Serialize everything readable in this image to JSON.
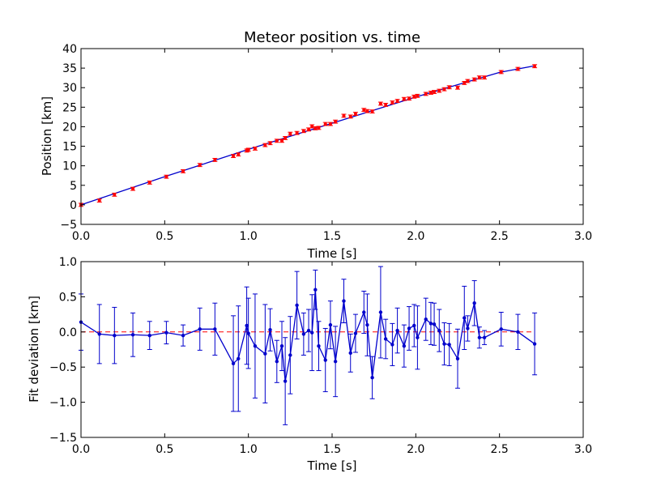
{
  "chart_data": [
    {
      "type": "scatter",
      "title": "Meteor position vs. time",
      "xlabel": "Time [s]",
      "ylabel": "Position [km]",
      "xlim": [
        0.0,
        3.0
      ],
      "ylim": [
        -5,
        40
      ],
      "x_ticks": [
        "0.0",
        "0.5",
        "1.0",
        "1.5",
        "2.0",
        "2.5",
        "3.0"
      ],
      "y_ticks": [
        "−5",
        "0",
        "5",
        "10",
        "15",
        "20",
        "25",
        "30",
        "35",
        "40"
      ],
      "grid": false,
      "series": [
        {
          "kind": "points-with-errorbars",
          "color": "#ff0000",
          "x": [
            0.0,
            0.11,
            0.2,
            0.31,
            0.41,
            0.51,
            0.61,
            0.71,
            0.8,
            0.91,
            0.94,
            0.99,
            1.0,
            1.04,
            1.1,
            1.13,
            1.17,
            1.2,
            1.22,
            1.25,
            1.29,
            1.33,
            1.36,
            1.38,
            1.4,
            1.42,
            1.46,
            1.49,
            1.52,
            1.57,
            1.61,
            1.64,
            1.69,
            1.71,
            1.74,
            1.79,
            1.82,
            1.86,
            1.89,
            1.93,
            1.96,
            1.99,
            2.01,
            2.06,
            2.09,
            2.11,
            2.14,
            2.17,
            2.2,
            2.25,
            2.29,
            2.31,
            2.35,
            2.38,
            2.41,
            2.51,
            2.61,
            2.71
          ],
          "y": [
            0.0,
            1.1,
            2.6,
            4.1,
            5.7,
            7.2,
            8.6,
            10.2,
            11.5,
            12.5,
            12.9,
            13.9,
            14.1,
            14.4,
            15.3,
            15.8,
            16.4,
            16.4,
            17.1,
            18.2,
            18.4,
            18.9,
            19.3,
            20.1,
            19.6,
            19.7,
            20.7,
            20.7,
            21.3,
            22.8,
            22.6,
            23.3,
            24.3,
            24.0,
            23.9,
            25.9,
            25.6,
            26.2,
            26.6,
            27.1,
            27.2,
            27.7,
            27.9,
            28.4,
            28.7,
            28.9,
            29.2,
            29.6,
            30.1,
            30.0,
            31.2,
            31.7,
            32.1,
            32.6,
            32.6,
            34.0,
            34.8,
            35.5
          ],
          "yerr": 0.4
        },
        {
          "kind": "fit-line",
          "color": "#0000cc",
          "x": [
            0.0,
            0.5,
            1.0,
            1.5,
            2.0,
            2.5,
            2.71
          ],
          "y": [
            0.0,
            7.2,
            14.2,
            20.9,
            27.6,
            33.9,
            35.6
          ]
        }
      ]
    },
    {
      "type": "line",
      "title": "",
      "xlabel": "Time [s]",
      "ylabel": "Fit deviation [km]",
      "xlim": [
        0.0,
        3.0
      ],
      "ylim": [
        -1.5,
        1.0
      ],
      "x_ticks": [
        "0.0",
        "0.5",
        "1.0",
        "1.5",
        "2.0",
        "2.5",
        "3.0"
      ],
      "y_ticks": [
        "−1.5",
        "−1.0",
        "−0.5",
        "0.0",
        "0.5",
        "1.0"
      ],
      "grid": false,
      "series": [
        {
          "kind": "line-with-errorbars",
          "color": "#0000cc",
          "x": [
            0.0,
            0.11,
            0.2,
            0.31,
            0.41,
            0.51,
            0.61,
            0.71,
            0.8,
            0.91,
            0.94,
            0.99,
            1.0,
            1.04,
            1.1,
            1.13,
            1.17,
            1.2,
            1.22,
            1.25,
            1.29,
            1.33,
            1.36,
            1.38,
            1.4,
            1.42,
            1.46,
            1.49,
            1.52,
            1.57,
            1.61,
            1.64,
            1.69,
            1.71,
            1.74,
            1.79,
            1.82,
            1.86,
            1.89,
            1.93,
            1.96,
            1.99,
            2.01,
            2.06,
            2.09,
            2.11,
            2.14,
            2.17,
            2.2,
            2.25,
            2.29,
            2.31,
            2.35,
            2.38,
            2.41,
            2.51,
            2.61,
            2.71
          ],
          "y": [
            0.14,
            -0.03,
            -0.05,
            -0.04,
            -0.05,
            -0.01,
            -0.05,
            0.04,
            0.04,
            -0.45,
            -0.38,
            0.09,
            -0.02,
            -0.2,
            -0.31,
            0.03,
            -0.42,
            -0.2,
            -0.7,
            -0.33,
            0.38,
            -0.03,
            0.02,
            -0.01,
            0.6,
            -0.2,
            -0.4,
            0.1,
            -0.42,
            0.44,
            -0.3,
            -0.02,
            0.28,
            0.1,
            -0.65,
            0.28,
            -0.1,
            -0.18,
            0.02,
            -0.2,
            0.05,
            0.09,
            -0.08,
            0.18,
            0.12,
            0.11,
            0.02,
            -0.17,
            -0.18,
            -0.38,
            0.2,
            0.05,
            0.41,
            -0.08,
            -0.08,
            0.04,
            0.0,
            -0.17
          ],
          "yerr": [
            0.4,
            0.42,
            0.4,
            0.31,
            0.2,
            0.16,
            0.15,
            0.3,
            0.37,
            0.68,
            0.75,
            0.55,
            0.5,
            0.74,
            0.7,
            0.3,
            0.3,
            0.35,
            0.62,
            0.55,
            0.48,
            0.3,
            0.3,
            0.54,
            0.28,
            0.35,
            0.45,
            0.34,
            0.5,
            0.31,
            0.27,
            0.27,
            0.3,
            0.44,
            0.3,
            0.65,
            0.28,
            0.3,
            0.32,
            0.3,
            0.31,
            0.3,
            0.45,
            0.3,
            0.3,
            0.3,
            0.3,
            0.3,
            0.3,
            0.42,
            0.45,
            0.18,
            0.32,
            0.15,
            0.1,
            0.24,
            0.25,
            0.44
          ]
        },
        {
          "kind": "reference-line",
          "color": "#ff0000",
          "style": "dashed",
          "y": 0.0
        }
      ]
    }
  ]
}
